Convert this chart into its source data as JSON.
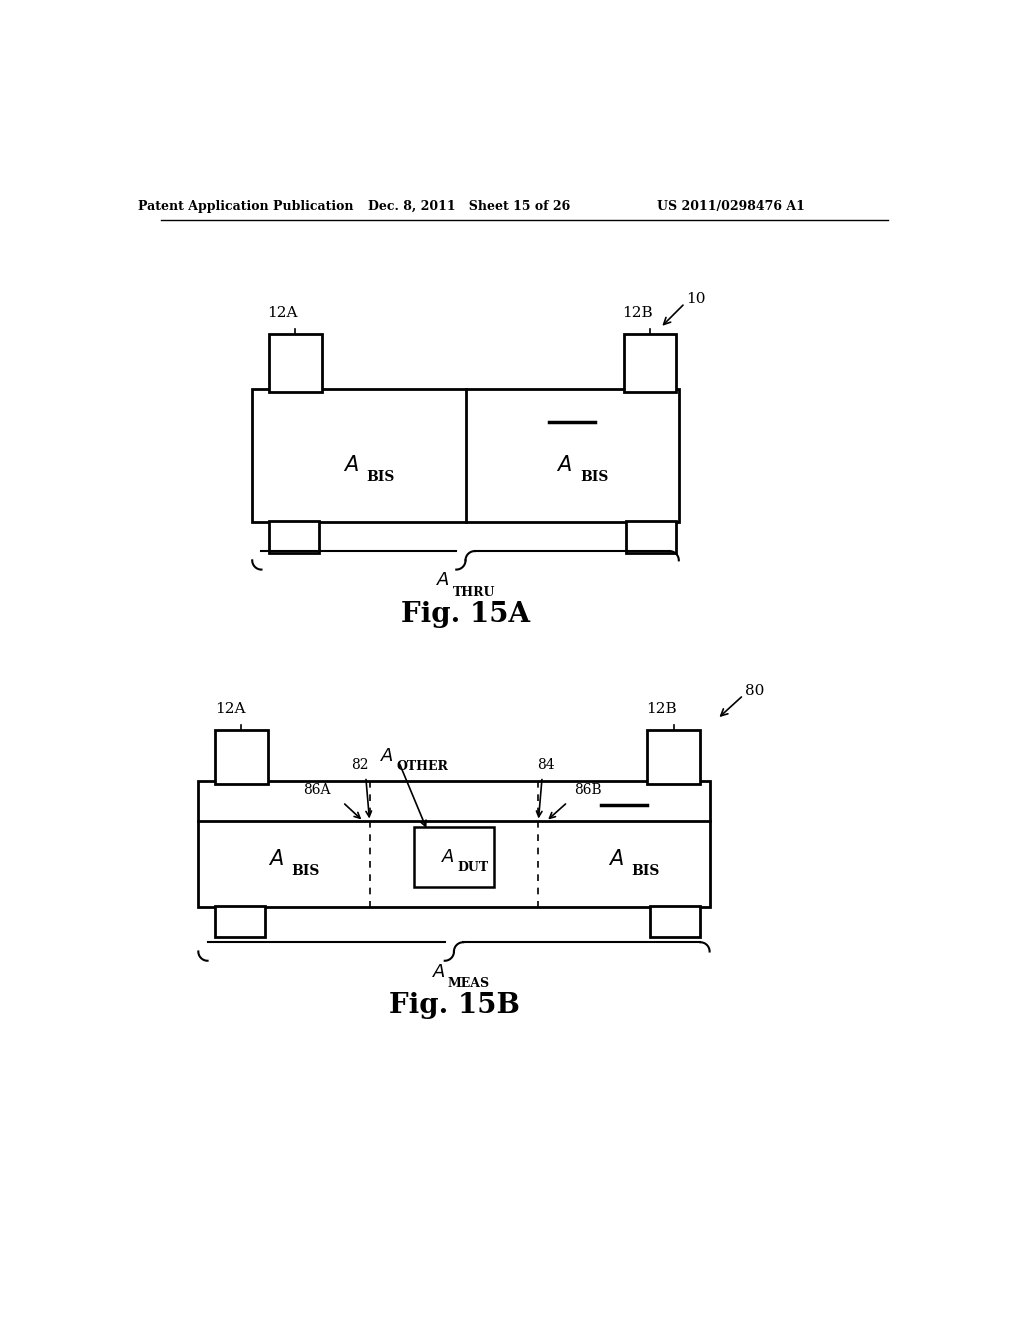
{
  "bg_color": "#ffffff",
  "header_left": "Patent Application Publication",
  "header_mid": "Dec. 8, 2011   Sheet 15 of 26",
  "header_right": "US 2011/0298476 A1"
}
